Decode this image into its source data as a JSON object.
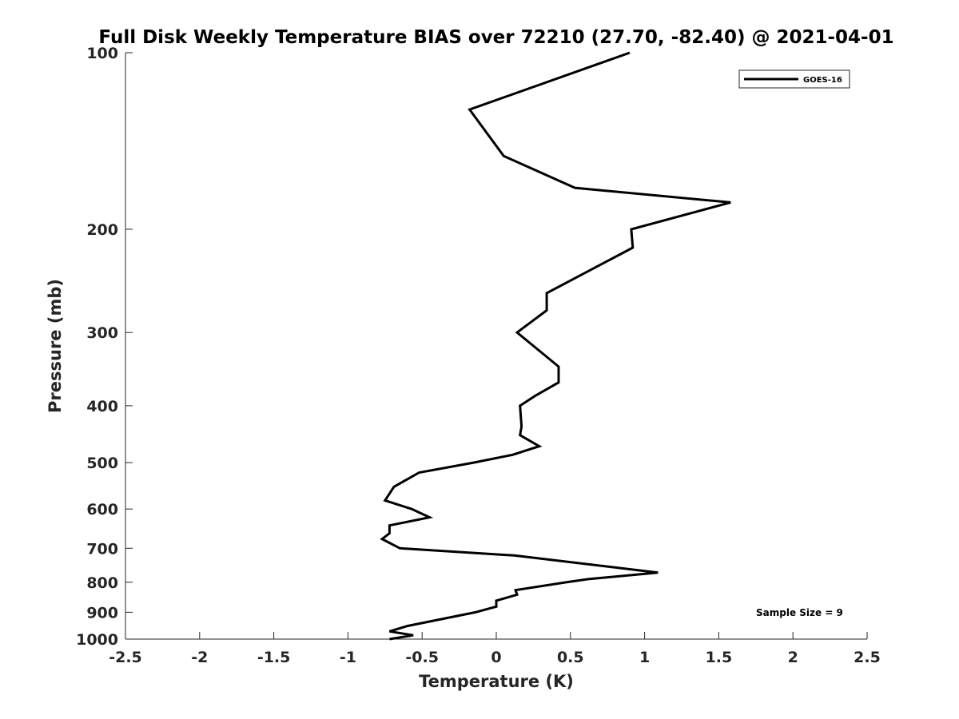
{
  "chart_data": {
    "type": "line",
    "title": "Full Disk Weekly Temperature BIAS over 72210 (27.70, -82.40) @ 2021-04-01",
    "xlabel": "Temperature (K)",
    "ylabel": "Pressure (mb)",
    "xlim": [
      -2.5,
      2.5
    ],
    "ylim": [
      100,
      1000
    ],
    "y_scale": "log",
    "y_reversed": true,
    "xticks": [
      "-2.5",
      "-2",
      "-1.5",
      "-1",
      "-0.5",
      "0",
      "0.5",
      "1",
      "1.5",
      "2",
      "2.5"
    ],
    "yticks": [
      "100",
      "200",
      "300",
      "400",
      "500",
      "600",
      "700",
      "800",
      "900",
      "1000"
    ],
    "legend_position": "top-right",
    "annotation": "Sample Size = 9",
    "series": [
      {
        "name": "GOES-16",
        "color": "#000000",
        "points": [
          [
            0.9,
            100
          ],
          [
            -0.18,
            125
          ],
          [
            0.05,
            150
          ],
          [
            0.53,
            170
          ],
          [
            1.58,
            180
          ],
          [
            0.91,
            200
          ],
          [
            0.92,
            215
          ],
          [
            0.34,
            257
          ],
          [
            0.34,
            275
          ],
          [
            0.14,
            300
          ],
          [
            0.42,
            343
          ],
          [
            0.42,
            365
          ],
          [
            0.26,
            385
          ],
          [
            0.16,
            400
          ],
          [
            0.17,
            434
          ],
          [
            0.16,
            449
          ],
          [
            0.29,
            469
          ],
          [
            0.11,
            485
          ],
          [
            -0.15,
            500
          ],
          [
            -0.52,
            520
          ],
          [
            -0.69,
            550
          ],
          [
            -0.75,
            580
          ],
          [
            -0.57,
            600
          ],
          [
            -0.45,
            620
          ],
          [
            -0.72,
            640
          ],
          [
            -0.72,
            660
          ],
          [
            -0.77,
            675
          ],
          [
            -0.65,
            700
          ],
          [
            0.12,
            720
          ],
          [
            1.09,
            770
          ],
          [
            0.62,
            790
          ],
          [
            0.47,
            800
          ],
          [
            0.13,
            825
          ],
          [
            0.14,
            840
          ],
          [
            0.0,
            860
          ],
          [
            0.0,
            880
          ],
          [
            -0.14,
            900
          ],
          [
            -0.6,
            950
          ],
          [
            -0.72,
            970
          ],
          [
            -0.56,
            985
          ],
          [
            -0.72,
            1000
          ]
        ]
      }
    ]
  }
}
